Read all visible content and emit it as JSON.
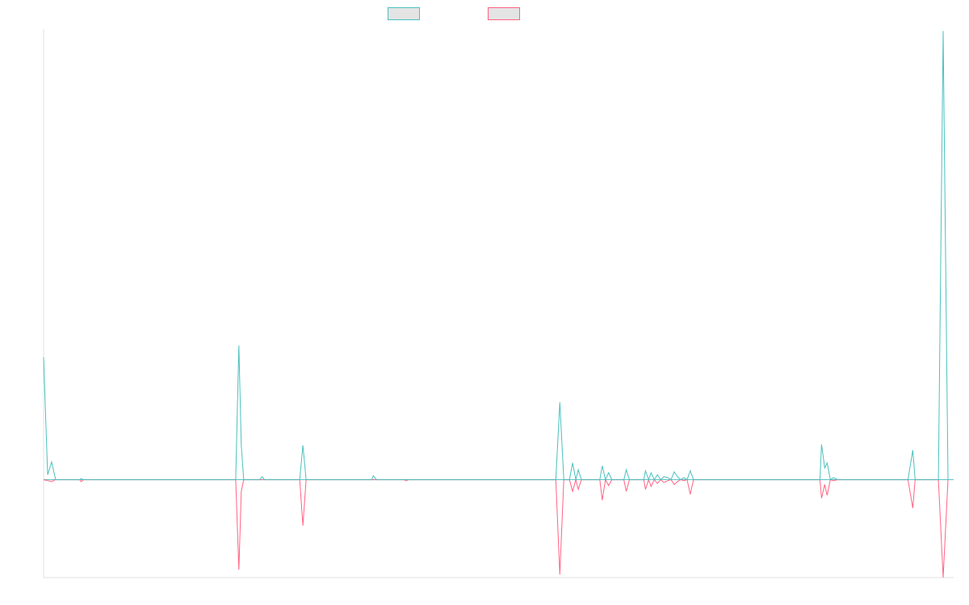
{
  "chart_data": {
    "type": "line",
    "title": "",
    "xlabel": "",
    "ylabel": "",
    "ylim": [
      -100,
      460
    ],
    "grid": false,
    "legend": "top-center",
    "series": [
      {
        "color": "#4bc0c0",
        "points": [
          [
            0,
            125
          ],
          [
            0.5,
            5
          ],
          [
            1,
            18
          ],
          [
            1.5,
            0
          ],
          [
            2,
            0
          ],
          [
            4.5,
            0
          ],
          [
            4.7,
            1
          ],
          [
            5,
            0
          ],
          [
            24,
            0
          ],
          [
            24.4,
            137
          ],
          [
            24.7,
            35
          ],
          [
            25,
            0
          ],
          [
            27,
            0
          ],
          [
            27.3,
            3
          ],
          [
            27.6,
            0
          ],
          [
            32,
            0
          ],
          [
            32.4,
            35
          ],
          [
            32.8,
            0
          ],
          [
            41,
            0
          ],
          [
            41.2,
            4
          ],
          [
            41.6,
            0
          ],
          [
            54,
            0
          ],
          [
            64,
            0
          ],
          [
            64.5,
            79
          ],
          [
            65,
            0
          ],
          [
            65.7,
            0
          ],
          [
            66.1,
            17
          ],
          [
            66.5,
            0
          ],
          [
            66.8,
            10
          ],
          [
            67.2,
            0
          ],
          [
            69.5,
            0
          ],
          [
            69.8,
            14
          ],
          [
            70.2,
            0
          ],
          [
            70.6,
            7
          ],
          [
            71,
            0
          ],
          [
            72.5,
            0
          ],
          [
            72.8,
            10
          ],
          [
            73.2,
            0
          ],
          [
            75,
            0
          ],
          [
            75.2,
            9
          ],
          [
            75.6,
            0
          ],
          [
            75.9,
            7
          ],
          [
            76.3,
            0
          ],
          [
            76.7,
            5
          ],
          [
            77.1,
            0
          ],
          [
            77.5,
            3
          ],
          [
            78,
            2
          ],
          [
            78.4,
            0
          ],
          [
            78.8,
            8
          ],
          [
            79.2,
            3
          ],
          [
            79.6,
            0
          ],
          [
            80,
            2
          ],
          [
            80.4,
            0
          ],
          [
            80.8,
            9
          ],
          [
            81.2,
            0
          ],
          [
            97,
            0
          ],
          [
            97.2,
            36
          ],
          [
            97.6,
            12
          ],
          [
            97.9,
            17
          ],
          [
            98.3,
            0
          ],
          [
            98.7,
            2
          ],
          [
            99.2,
            0
          ],
          [
            108,
            0
          ],
          [
            108.6,
            30
          ],
          [
            108.9,
            0
          ],
          [
            111.8,
            0
          ],
          [
            112.4,
            458
          ],
          [
            113,
            0
          ]
        ]
      },
      {
        "color": "#ff6384",
        "points": [
          [
            0,
            0
          ],
          [
            0.5,
            -1
          ],
          [
            1,
            -2
          ],
          [
            1.5,
            0
          ],
          [
            4.5,
            0
          ],
          [
            4.7,
            -2
          ],
          [
            5,
            0
          ],
          [
            24,
            0
          ],
          [
            24.4,
            -92
          ],
          [
            24.7,
            -12
          ],
          [
            25,
            0
          ],
          [
            32,
            0
          ],
          [
            32.4,
            -47
          ],
          [
            32.8,
            0
          ],
          [
            45,
            0
          ],
          [
            45.3,
            -1
          ],
          [
            45.6,
            0
          ],
          [
            64,
            0
          ],
          [
            64.5,
            -97
          ],
          [
            65,
            0
          ],
          [
            65.7,
            0
          ],
          [
            66.1,
            -12
          ],
          [
            66.5,
            0
          ],
          [
            66.8,
            -10
          ],
          [
            67.2,
            0
          ],
          [
            69.5,
            0
          ],
          [
            69.8,
            -21
          ],
          [
            70.2,
            0
          ],
          [
            70.6,
            -6
          ],
          [
            71,
            0
          ],
          [
            72.5,
            0
          ],
          [
            72.8,
            -12
          ],
          [
            73.2,
            0
          ],
          [
            75,
            0
          ],
          [
            75.2,
            -10
          ],
          [
            75.6,
            0
          ],
          [
            75.9,
            -7
          ],
          [
            76.3,
            0
          ],
          [
            76.7,
            -4
          ],
          [
            77.1,
            0
          ],
          [
            77.5,
            -3
          ],
          [
            78,
            -1
          ],
          [
            78.4,
            0
          ],
          [
            78.8,
            -5
          ],
          [
            79.2,
            -2
          ],
          [
            79.6,
            0
          ],
          [
            80,
            -1
          ],
          [
            80.4,
            0
          ],
          [
            80.8,
            -15
          ],
          [
            81.2,
            0
          ],
          [
            97,
            0
          ],
          [
            97.2,
            -19
          ],
          [
            97.6,
            -5
          ],
          [
            97.9,
            -16
          ],
          [
            98.3,
            0
          ],
          [
            98.7,
            -1
          ],
          [
            99.2,
            0
          ],
          [
            108,
            0
          ],
          [
            108.6,
            -29
          ],
          [
            108.9,
            0
          ],
          [
            111.8,
            0
          ],
          [
            112.4,
            -100
          ],
          [
            113,
            0
          ]
        ]
      }
    ],
    "xlim": [
      0,
      112.6
    ]
  }
}
